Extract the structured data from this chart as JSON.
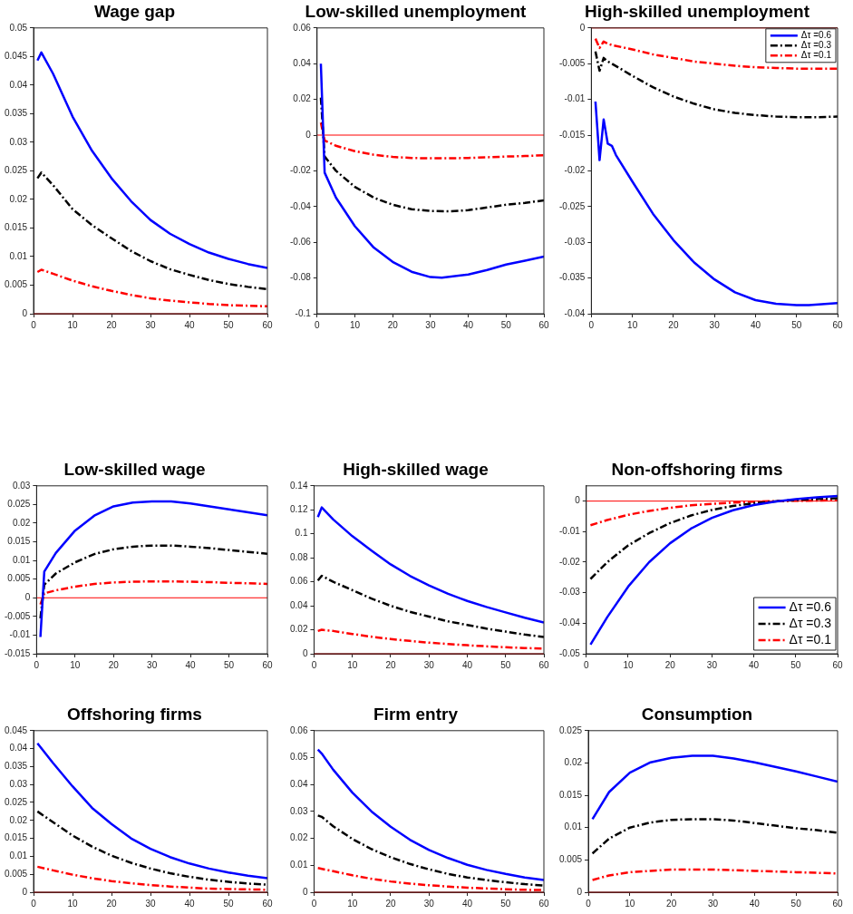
{
  "chart_data": [
    {
      "type": "line",
      "title": "Wage gap",
      "xlim": [
        0,
        60
      ],
      "xticks": [
        0,
        10,
        20,
        30,
        40,
        50,
        60
      ],
      "ylim": [
        0,
        0.05
      ],
      "yticks": [
        0,
        0.005,
        0.01,
        0.015,
        0.02,
        0.025,
        0.03,
        0.035,
        0.04,
        0.045,
        0.05
      ],
      "grid": false,
      "ref_lines": [
        {
          "axis": "y",
          "value": 0,
          "color": "#ff0000"
        }
      ],
      "series": [
        {
          "color": "#0000ff",
          "line_style": "solid",
          "x": [
            1,
            2,
            5,
            10,
            15,
            20,
            25,
            30,
            35,
            40,
            45,
            50,
            55,
            60
          ],
          "values": [
            0.0443,
            0.0457,
            0.042,
            0.0345,
            0.0285,
            0.0237,
            0.0197,
            0.0164,
            0.014,
            0.0122,
            0.0107,
            0.0096,
            0.0087,
            0.008
          ]
        },
        {
          "color": "#000000",
          "line_style": "dashed",
          "x": [
            1,
            2,
            5,
            10,
            15,
            20,
            25,
            30,
            35,
            40,
            45,
            50,
            55,
            60
          ],
          "values": [
            0.0237,
            0.0247,
            0.0225,
            0.0183,
            0.0155,
            0.0132,
            0.011,
            0.0092,
            0.0078,
            0.0068,
            0.0059,
            0.0052,
            0.0047,
            0.0043
          ]
        },
        {
          "color": "#ff0000",
          "line_style": "dashed",
          "x": [
            1,
            2,
            5,
            10,
            15,
            20,
            25,
            30,
            35,
            40,
            45,
            50,
            55,
            60
          ],
          "values": [
            0.0073,
            0.0077,
            0.007,
            0.0058,
            0.0048,
            0.004,
            0.0033,
            0.0027,
            0.0023,
            0.002,
            0.0017,
            0.0015,
            0.0014,
            0.0013
          ]
        }
      ]
    },
    {
      "type": "line",
      "title": "Low-skilled unemployment",
      "xlim": [
        0,
        60
      ],
      "xticks": [
        0,
        10,
        20,
        30,
        40,
        50,
        60
      ],
      "ylim": [
        -0.1,
        0.06
      ],
      "yticks": [
        -0.1,
        -0.08,
        -0.06,
        -0.04,
        -0.02,
        0,
        0.02,
        0.04,
        0.06
      ],
      "grid": false,
      "ref_lines": [
        {
          "axis": "y",
          "value": 0,
          "color": "#ff0000"
        }
      ],
      "series": [
        {
          "color": "#0000ff",
          "line_style": "solid",
          "x": [
            1,
            2,
            5,
            10,
            15,
            20,
            25,
            30,
            33,
            40,
            45,
            50,
            55,
            60
          ],
          "values": [
            0.04,
            -0.021,
            -0.035,
            -0.051,
            -0.063,
            -0.071,
            -0.0765,
            -0.0795,
            -0.0798,
            -0.078,
            -0.0755,
            -0.0725,
            -0.0703,
            -0.068
          ]
        },
        {
          "color": "#000000",
          "line_style": "dashed",
          "x": [
            1,
            2,
            5,
            10,
            15,
            20,
            25,
            30,
            35,
            40,
            45,
            50,
            55,
            60
          ],
          "values": [
            0.021,
            -0.012,
            -0.02,
            -0.029,
            -0.035,
            -0.039,
            -0.0415,
            -0.0425,
            -0.0427,
            -0.042,
            -0.0405,
            -0.039,
            -0.038,
            -0.0365
          ]
        },
        {
          "color": "#ff0000",
          "line_style": "dashed",
          "x": [
            1,
            2,
            5,
            10,
            15,
            20,
            25,
            30,
            35,
            40,
            45,
            50,
            55,
            60
          ],
          "values": [
            0.007,
            -0.003,
            -0.006,
            -0.009,
            -0.011,
            -0.0122,
            -0.0128,
            -0.013,
            -0.013,
            -0.0128,
            -0.0124,
            -0.012,
            -0.0117,
            -0.0113
          ]
        }
      ]
    },
    {
      "type": "line",
      "title": "High-skilled unemployment",
      "xlim": [
        0,
        60
      ],
      "xticks": [
        0,
        10,
        20,
        30,
        40,
        50,
        60
      ],
      "ylim": [
        -0.04,
        0
      ],
      "yticks": [
        -0.04,
        -0.035,
        -0.03,
        -0.025,
        -0.02,
        -0.015,
        -0.01,
        -0.005,
        0
      ],
      "grid": false,
      "legend": "top right",
      "ref_lines": [
        {
          "axis": "y",
          "value": 0,
          "color": "#ff0000"
        }
      ],
      "series": [
        {
          "name": "Δτ =0.6",
          "color": "#0000ff",
          "line_style": "solid",
          "x": [
            1,
            2,
            3,
            4,
            5,
            6,
            10,
            15,
            20,
            25,
            30,
            35,
            40,
            45,
            50,
            53,
            60
          ],
          "values": [
            -0.0103,
            -0.0185,
            -0.0128,
            -0.0162,
            -0.0165,
            -0.0178,
            -0.0215,
            -0.026,
            -0.0297,
            -0.0328,
            -0.0352,
            -0.037,
            -0.0381,
            -0.0386,
            -0.0388,
            -0.0388,
            -0.0385
          ]
        },
        {
          "name": "Δτ =0.3",
          "color": "#000000",
          "line_style": "dashed",
          "x": [
            1,
            2,
            3,
            4,
            5,
            10,
            15,
            20,
            25,
            30,
            35,
            40,
            45,
            50,
            55,
            60
          ],
          "values": [
            -0.0033,
            -0.006,
            -0.0042,
            -0.0047,
            -0.005,
            -0.0067,
            -0.0083,
            -0.0096,
            -0.0106,
            -0.0114,
            -0.0119,
            -0.0122,
            -0.0124,
            -0.0125,
            -0.0125,
            -0.0124
          ]
        },
        {
          "name": "Δτ =0.1",
          "color": "#ff0000",
          "line_style": "dashed",
          "x": [
            1,
            2,
            3,
            4,
            5,
            10,
            15,
            20,
            25,
            30,
            35,
            40,
            45,
            50,
            55,
            60
          ],
          "values": [
            -0.0015,
            -0.0028,
            -0.0019,
            -0.0022,
            -0.0024,
            -0.003,
            -0.0037,
            -0.0042,
            -0.0047,
            -0.005,
            -0.0053,
            -0.0055,
            -0.0056,
            -0.0057,
            -0.0057,
            -0.0057
          ]
        }
      ]
    },
    {
      "type": "line",
      "title": "Low-skilled wage",
      "xlim": [
        0,
        60
      ],
      "xticks": [
        0,
        10,
        20,
        30,
        40,
        50,
        60
      ],
      "ylim": [
        -0.015,
        0.03
      ],
      "yticks": [
        -0.015,
        -0.01,
        -0.005,
        0,
        0.005,
        0.01,
        0.015,
        0.02,
        0.025,
        0.03
      ],
      "grid": false,
      "ref_lines": [
        {
          "axis": "y",
          "value": 0,
          "color": "#ff0000"
        }
      ],
      "series": [
        {
          "color": "#0000ff",
          "line_style": "solid",
          "x": [
            1,
            2,
            5,
            10,
            15,
            20,
            25,
            30,
            35,
            40,
            45,
            50,
            55,
            60
          ],
          "values": [
            -0.0105,
            0.007,
            0.012,
            0.018,
            0.022,
            0.0245,
            0.0255,
            0.0258,
            0.0258,
            0.0253,
            0.0245,
            0.0237,
            0.0229,
            0.0221
          ]
        },
        {
          "color": "#000000",
          "line_style": "dashed",
          "x": [
            1,
            2,
            5,
            10,
            15,
            20,
            25,
            30,
            35,
            40,
            45,
            50,
            55,
            60
          ],
          "values": [
            -0.0055,
            0.0035,
            0.0065,
            0.0095,
            0.0117,
            0.013,
            0.0137,
            0.014,
            0.014,
            0.0137,
            0.0133,
            0.0128,
            0.0123,
            0.0118
          ]
        },
        {
          "color": "#ff0000",
          "line_style": "dashed",
          "x": [
            1,
            2,
            5,
            10,
            15,
            20,
            25,
            30,
            35,
            40,
            45,
            50,
            55,
            60
          ],
          "values": [
            -0.0018,
            0.0012,
            0.002,
            0.003,
            0.0037,
            0.0041,
            0.0043,
            0.0044,
            0.0044,
            0.0043,
            0.0042,
            0.004,
            0.0039,
            0.0037
          ]
        }
      ]
    },
    {
      "type": "line",
      "title": "High-skilled wage",
      "xlim": [
        0,
        60
      ],
      "xticks": [
        0,
        10,
        20,
        30,
        40,
        50,
        60
      ],
      "ylim": [
        0,
        0.14
      ],
      "yticks": [
        0,
        0.02,
        0.04,
        0.06,
        0.08,
        0.1,
        0.12,
        0.14
      ],
      "grid": false,
      "ref_lines": [
        {
          "axis": "y",
          "value": 0,
          "color": "#ff0000"
        }
      ],
      "series": [
        {
          "color": "#0000ff",
          "line_style": "solid",
          "x": [
            1,
            2,
            5,
            10,
            15,
            20,
            25,
            30,
            35,
            40,
            45,
            50,
            55,
            60
          ],
          "values": [
            0.114,
            0.122,
            0.112,
            0.098,
            0.086,
            0.0745,
            0.065,
            0.057,
            0.05,
            0.044,
            0.039,
            0.0345,
            0.03,
            0.026
          ]
        },
        {
          "color": "#000000",
          "line_style": "dashed",
          "x": [
            1,
            2,
            5,
            10,
            15,
            20,
            25,
            30,
            35,
            40,
            45,
            50,
            55,
            60
          ],
          "values": [
            0.061,
            0.065,
            0.06,
            0.053,
            0.046,
            0.04,
            0.035,
            0.031,
            0.027,
            0.024,
            0.021,
            0.0185,
            0.016,
            0.014
          ]
        },
        {
          "color": "#ff0000",
          "line_style": "dashed",
          "x": [
            1,
            2,
            5,
            10,
            15,
            20,
            25,
            30,
            35,
            40,
            45,
            50,
            55,
            60
          ],
          "values": [
            0.019,
            0.02,
            0.019,
            0.0165,
            0.0142,
            0.0123,
            0.0107,
            0.0093,
            0.0081,
            0.0071,
            0.0062,
            0.0054,
            0.0048,
            0.0043
          ]
        }
      ]
    },
    {
      "type": "line",
      "title": "Non-offshoring firms",
      "xlim": [
        0,
        60
      ],
      "xticks": [
        0,
        10,
        20,
        30,
        40,
        50,
        60
      ],
      "ylim": [
        -0.05,
        0.005
      ],
      "yticks": [
        -0.05,
        -0.04,
        -0.03,
        -0.02,
        -0.01,
        0
      ],
      "grid": false,
      "legend": "bottom right",
      "ref_lines": [
        {
          "axis": "y",
          "value": 0,
          "color": "#ff0000"
        }
      ],
      "series": [
        {
          "name": "Δτ =0.6",
          "color": "#0000ff",
          "line_style": "solid",
          "x": [
            1,
            5,
            10,
            15,
            20,
            25,
            30,
            35,
            40,
            45,
            50,
            55,
            60
          ],
          "values": [
            -0.047,
            -0.038,
            -0.028,
            -0.02,
            -0.0138,
            -0.009,
            -0.0055,
            -0.003,
            -0.0013,
            -0.0002,
            0.0006,
            0.0012,
            0.0017
          ]
        },
        {
          "name": "Δτ =0.3",
          "color": "#000000",
          "line_style": "dashed",
          "x": [
            1,
            5,
            10,
            15,
            20,
            25,
            30,
            35,
            40,
            45,
            50,
            55,
            60
          ],
          "values": [
            -0.0255,
            -0.02,
            -0.0145,
            -0.0105,
            -0.0072,
            -0.0047,
            -0.0029,
            -0.0016,
            -0.0007,
            -0.0001,
            0.0004,
            0.0007,
            0.0009
          ]
        },
        {
          "name": "Δτ =0.1",
          "color": "#ff0000",
          "line_style": "dashed",
          "x": [
            1,
            5,
            10,
            15,
            20,
            25,
            30,
            35,
            40,
            45,
            50,
            55,
            60
          ],
          "values": [
            -0.0079,
            -0.0062,
            -0.0045,
            -0.0032,
            -0.0022,
            -0.0014,
            -0.0009,
            -0.0005,
            -0.0002,
            0,
            0.0001,
            0.0002,
            0.0003
          ]
        }
      ]
    },
    {
      "type": "line",
      "title": "Offshoring firms",
      "xlim": [
        0,
        60
      ],
      "xticks": [
        0,
        10,
        20,
        30,
        40,
        50,
        60
      ],
      "ylim": [
        0,
        0.045
      ],
      "yticks": [
        0,
        0.005,
        0.01,
        0.015,
        0.02,
        0.025,
        0.03,
        0.035,
        0.04,
        0.045
      ],
      "grid": false,
      "ref_lines": [
        {
          "axis": "y",
          "value": 0,
          "color": "#ff0000"
        }
      ],
      "series": [
        {
          "color": "#0000ff",
          "line_style": "solid",
          "x": [
            1,
            5,
            10,
            15,
            20,
            25,
            30,
            35,
            40,
            45,
            50,
            55,
            60
          ],
          "values": [
            0.0415,
            0.036,
            0.0295,
            0.0235,
            0.019,
            0.015,
            0.0121,
            0.0098,
            0.008,
            0.0066,
            0.0055,
            0.0046,
            0.0039
          ]
        },
        {
          "color": "#000000",
          "line_style": "dashed",
          "x": [
            1,
            5,
            10,
            15,
            20,
            25,
            30,
            35,
            40,
            45,
            50,
            55,
            60
          ],
          "values": [
            0.0225,
            0.0195,
            0.0158,
            0.0127,
            0.0102,
            0.0082,
            0.0066,
            0.0053,
            0.0043,
            0.0035,
            0.0029,
            0.0024,
            0.0021
          ]
        },
        {
          "color": "#ff0000",
          "line_style": "dashed",
          "x": [
            1,
            5,
            10,
            15,
            20,
            25,
            30,
            35,
            40,
            45,
            50,
            55,
            60
          ],
          "values": [
            0.0071,
            0.0061,
            0.0049,
            0.0039,
            0.0031,
            0.0025,
            0.002,
            0.0016,
            0.0013,
            0.001,
            0.0009,
            0.0008,
            0.0007
          ]
        }
      ]
    },
    {
      "type": "line",
      "title": "Firm entry",
      "xlim": [
        0,
        60
      ],
      "xticks": [
        0,
        10,
        20,
        30,
        40,
        50,
        60
      ],
      "ylim": [
        0,
        0.06
      ],
      "yticks": [
        0,
        0.01,
        0.02,
        0.03,
        0.04,
        0.05,
        0.06
      ],
      "grid": false,
      "ref_lines": [
        {
          "axis": "y",
          "value": 0,
          "color": "#ff0000"
        }
      ],
      "series": [
        {
          "color": "#0000ff",
          "line_style": "solid",
          "x": [
            1,
            2,
            5,
            10,
            15,
            20,
            25,
            30,
            35,
            40,
            45,
            50,
            55,
            60
          ],
          "values": [
            0.053,
            0.0515,
            0.0455,
            0.037,
            0.03,
            0.0243,
            0.0195,
            0.0157,
            0.0127,
            0.0102,
            0.0083,
            0.0068,
            0.0055,
            0.0045
          ]
        },
        {
          "color": "#000000",
          "line_style": "dashed",
          "x": [
            1,
            2,
            5,
            10,
            15,
            20,
            25,
            30,
            35,
            40,
            45,
            50,
            55,
            60
          ],
          "values": [
            0.0285,
            0.028,
            0.0245,
            0.0198,
            0.016,
            0.013,
            0.0105,
            0.0085,
            0.0068,
            0.0055,
            0.0045,
            0.0037,
            0.003,
            0.0025
          ]
        },
        {
          "color": "#ff0000",
          "line_style": "dashed",
          "x": [
            1,
            5,
            10,
            15,
            20,
            25,
            30,
            35,
            40,
            45,
            50,
            55,
            60
          ],
          "values": [
            0.009,
            0.0078,
            0.0063,
            0.005,
            0.004,
            0.0032,
            0.0026,
            0.0021,
            0.0017,
            0.0014,
            0.0011,
            0.0009,
            0.0008
          ]
        }
      ]
    },
    {
      "type": "line",
      "title": "Consumption",
      "xlim": [
        0,
        60
      ],
      "xticks": [
        0,
        10,
        20,
        30,
        40,
        50,
        60
      ],
      "ylim": [
        0,
        0.025
      ],
      "yticks": [
        0,
        0.005,
        0.01,
        0.015,
        0.02,
        0.025
      ],
      "grid": false,
      "ref_lines": [
        {
          "axis": "y",
          "value": 0,
          "color": "#ff0000"
        }
      ],
      "series": [
        {
          "color": "#0000ff",
          "line_style": "solid",
          "x": [
            1,
            5,
            10,
            15,
            20,
            25,
            30,
            35,
            40,
            45,
            50,
            55,
            60
          ],
          "values": [
            0.0113,
            0.0155,
            0.0185,
            0.0201,
            0.0208,
            0.0211,
            0.0211,
            0.0207,
            0.0201,
            0.0194,
            0.0187,
            0.0179,
            0.0171
          ]
        },
        {
          "color": "#000000",
          "line_style": "dashed",
          "x": [
            1,
            5,
            10,
            15,
            20,
            25,
            30,
            35,
            40,
            45,
            50,
            55,
            60
          ],
          "values": [
            0.006,
            0.0083,
            0.01,
            0.0108,
            0.0112,
            0.0113,
            0.0113,
            0.0111,
            0.0107,
            0.0103,
            0.0099,
            0.0096,
            0.0092
          ]
        },
        {
          "color": "#ff0000",
          "line_style": "dashed",
          "x": [
            1,
            5,
            10,
            15,
            20,
            25,
            30,
            35,
            40,
            45,
            50,
            55,
            60
          ],
          "values": [
            0.0019,
            0.0026,
            0.0031,
            0.0033,
            0.0035,
            0.0035,
            0.0035,
            0.0034,
            0.0033,
            0.0032,
            0.0031,
            0.003,
            0.0029
          ]
        }
      ]
    }
  ]
}
